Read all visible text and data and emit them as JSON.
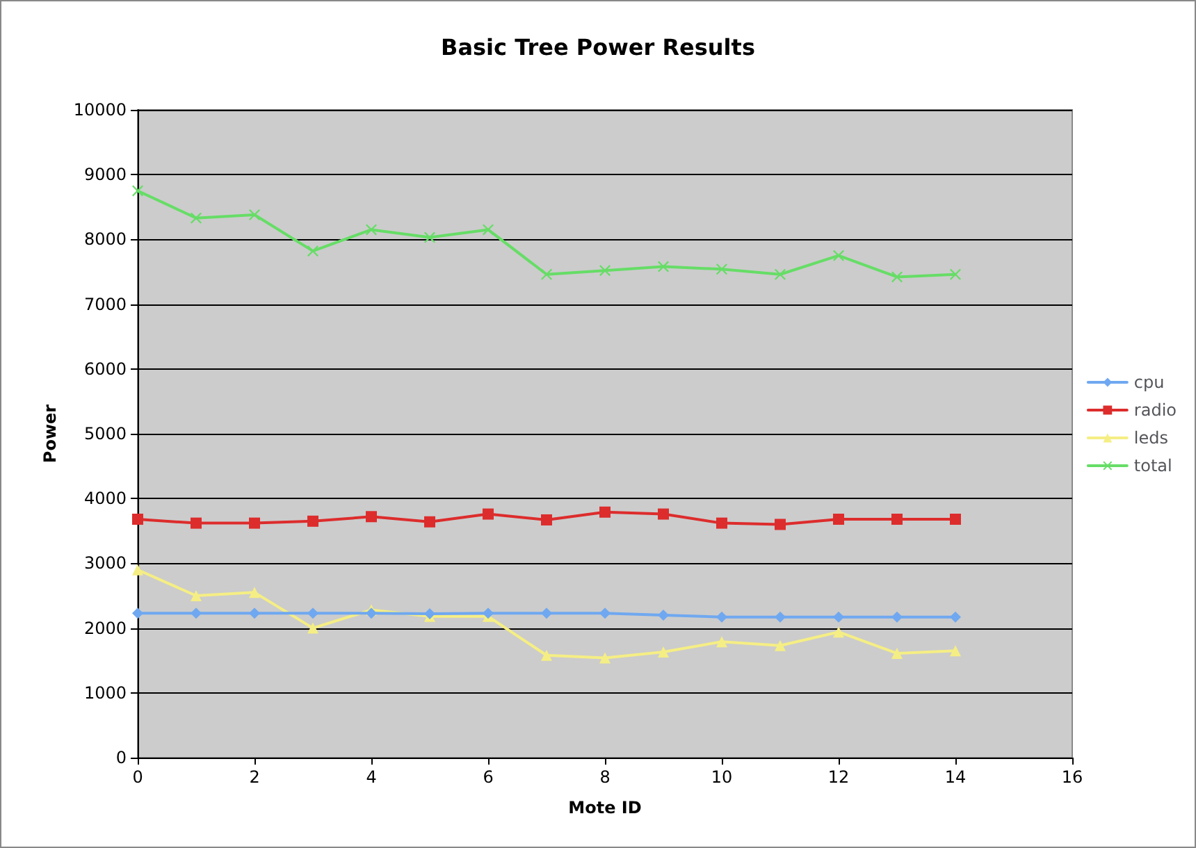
{
  "chart_data": {
    "type": "line",
    "title": "Basic Tree Power Results",
    "xlabel": "Mote ID",
    "ylabel": "Power",
    "x": [
      0,
      1,
      2,
      3,
      4,
      5,
      6,
      7,
      8,
      9,
      10,
      11,
      12,
      13,
      14
    ],
    "xlim": [
      0,
      16
    ],
    "xticks": [
      0,
      2,
      4,
      6,
      8,
      10,
      12,
      14,
      16
    ],
    "ylim": [
      0,
      10000
    ],
    "yticks": [
      0,
      1000,
      2000,
      3000,
      4000,
      5000,
      6000,
      7000,
      8000,
      9000,
      10000
    ],
    "grid": "y",
    "legend": "right",
    "line_style": "solid",
    "series": [
      {
        "name": "cpu",
        "color": "#6fa8f0",
        "marker": "diamond",
        "values": [
          2230,
          2230,
          2230,
          2230,
          2230,
          2220,
          2230,
          2230,
          2230,
          2200,
          2170,
          2170,
          2170,
          2170,
          2170
        ]
      },
      {
        "name": "radio",
        "color": "#dd2c2c",
        "marker": "square",
        "values": [
          3680,
          3620,
          3620,
          3650,
          3720,
          3640,
          3760,
          3670,
          3790,
          3760,
          3620,
          3600,
          3680,
          3680,
          3680
        ]
      },
      {
        "name": "leds",
        "color": "#f5ee84",
        "marker": "triangle",
        "values": [
          2900,
          2500,
          2550,
          2000,
          2280,
          2180,
          2180,
          1580,
          1540,
          1630,
          1790,
          1730,
          1940,
          1610,
          1650
        ]
      },
      {
        "name": "total",
        "color": "#66dd66",
        "marker": "cross",
        "values": [
          8750,
          8330,
          8380,
          7820,
          8150,
          8030,
          8150,
          7460,
          7520,
          7580,
          7540,
          7460,
          7750,
          7420,
          7460
        ]
      }
    ]
  }
}
